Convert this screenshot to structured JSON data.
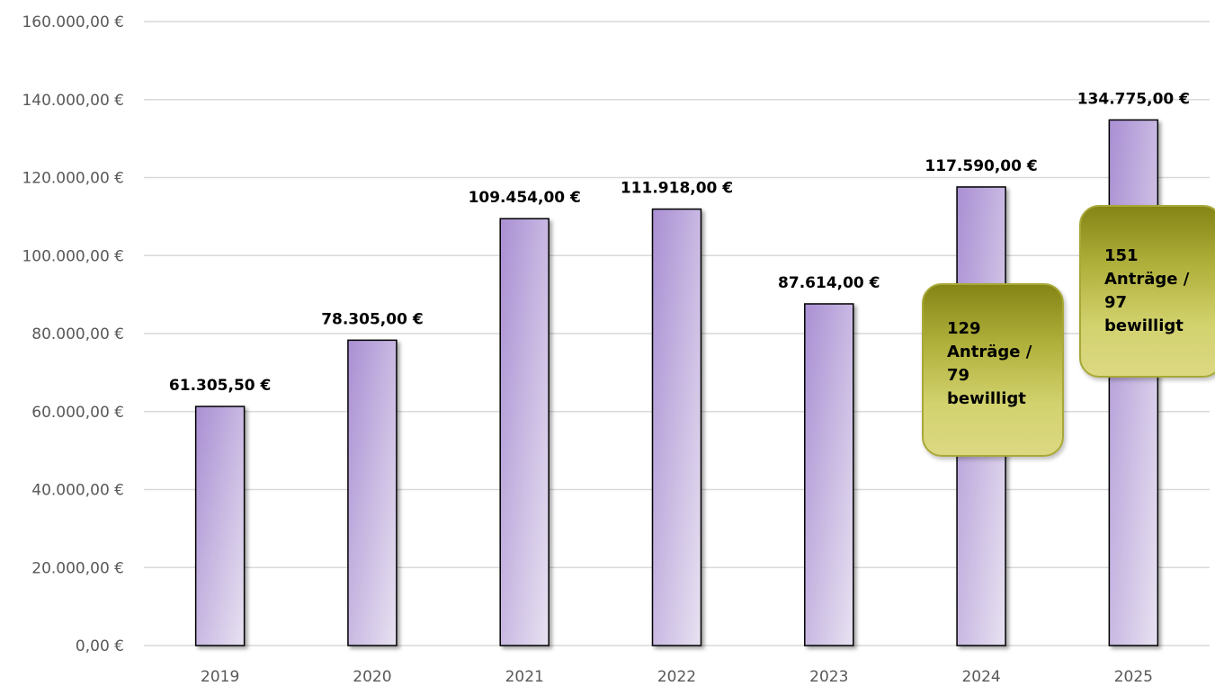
{
  "chart_data": {
    "type": "bar",
    "categories": [
      "2019",
      "2020",
      "2021",
      "2022",
      "2023",
      "2024",
      "2025"
    ],
    "values": [
      61305.5,
      78305,
      109454,
      111918,
      87614,
      117590,
      134775
    ],
    "value_labels": [
      "61.305,50 €",
      "78.305,00 €",
      "109.454,00 €",
      "111.918,00 €",
      "87.614,00 €",
      "117.590,00 €",
      "134.775,00 €"
    ],
    "ylim": [
      0,
      160000
    ],
    "yticks": [
      0,
      20000,
      40000,
      60000,
      80000,
      100000,
      120000,
      140000,
      160000
    ],
    "ytick_labels": [
      "0,00 €",
      "20.000,00 €",
      "40.000,00 €",
      "60.000,00 €",
      "80.000,00 €",
      "100.000,00 €",
      "120.000,00 €",
      "140.000,00 €",
      "160.000,00 €"
    ],
    "grid": true,
    "bar_color": "#a98fd3",
    "grid_color": "#d9d9d9",
    "annotations": [
      {
        "category": "2024",
        "text": "129\nAnträge /\n79\nbewilligt"
      },
      {
        "category": "2025",
        "text": "151\nAnträge /\n97\nbewilligt"
      }
    ]
  }
}
